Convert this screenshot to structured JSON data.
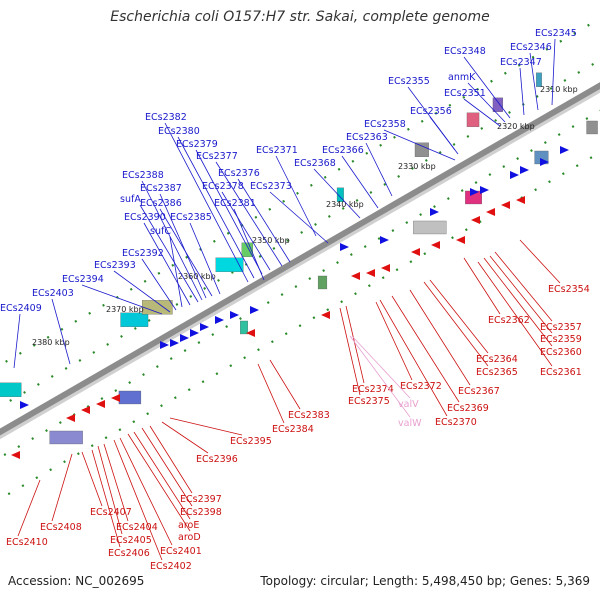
{
  "title": "Escherichia coli O157:H7 str. Sakai, complete genome",
  "footer": {
    "accession": "Accession: NC_002695",
    "summary": "Topology: circular; Length: 5,498,450 bp; Genes: 5,369"
  },
  "colors": {
    "forward_label": "#1a1acc",
    "reverse_label": "#cc1111",
    "trna_label": "#e8a0d0",
    "backbone": "#8c8c8c"
  },
  "scale": {
    "ticks": [
      "2310 kbp",
      "2320 kbp",
      "2330 kbp",
      "2340 kbp",
      "2350 kbp",
      "2360 kbp",
      "2370 kbp",
      "2380 kbp"
    ]
  },
  "labels": {
    "top": [
      "ECs2345",
      "ECs2346",
      "ECs2347",
      "ECs2348",
      "anmK",
      "ECs2351",
      "ECs2355",
      "ECs2356",
      "ECs2358",
      "ECs2363",
      "ECs2366",
      "ECs2368",
      "ECs2371",
      "ECs2373",
      "ECs2376",
      "ECs2377",
      "ECs2378",
      "ECs2379",
      "ECs2380",
      "ECs2381",
      "ECs2382",
      "ECs2385",
      "ECs2386",
      "ECs2387",
      "ECs2388",
      "sufA",
      "ECs2390",
      "sufC",
      "ECs2392",
      "ECs2393",
      "ECs2394",
      "ECs2403",
      "ECs2409"
    ],
    "bottom": [
      "ECs2354",
      "ECs2357",
      "ECs2359",
      "ECs2360",
      "ECs2361",
      "ECs2362",
      "ECs2364",
      "ECs2365",
      "ECs2367",
      "ECs2369",
      "ECs2370",
      "ECs2372",
      "ECs2374",
      "ECs2375",
      "valV",
      "valW",
      "ECs2383",
      "ECs2384",
      "ECs2395",
      "ECs2396",
      "ECs2397",
      "ECs2398",
      "aroE",
      "aroD",
      "ECs2401",
      "ECs2402",
      "ECs2404",
      "ECs2405",
      "ECs2406",
      "ECs2407",
      "ECs2408",
      "ECs2410"
    ]
  }
}
